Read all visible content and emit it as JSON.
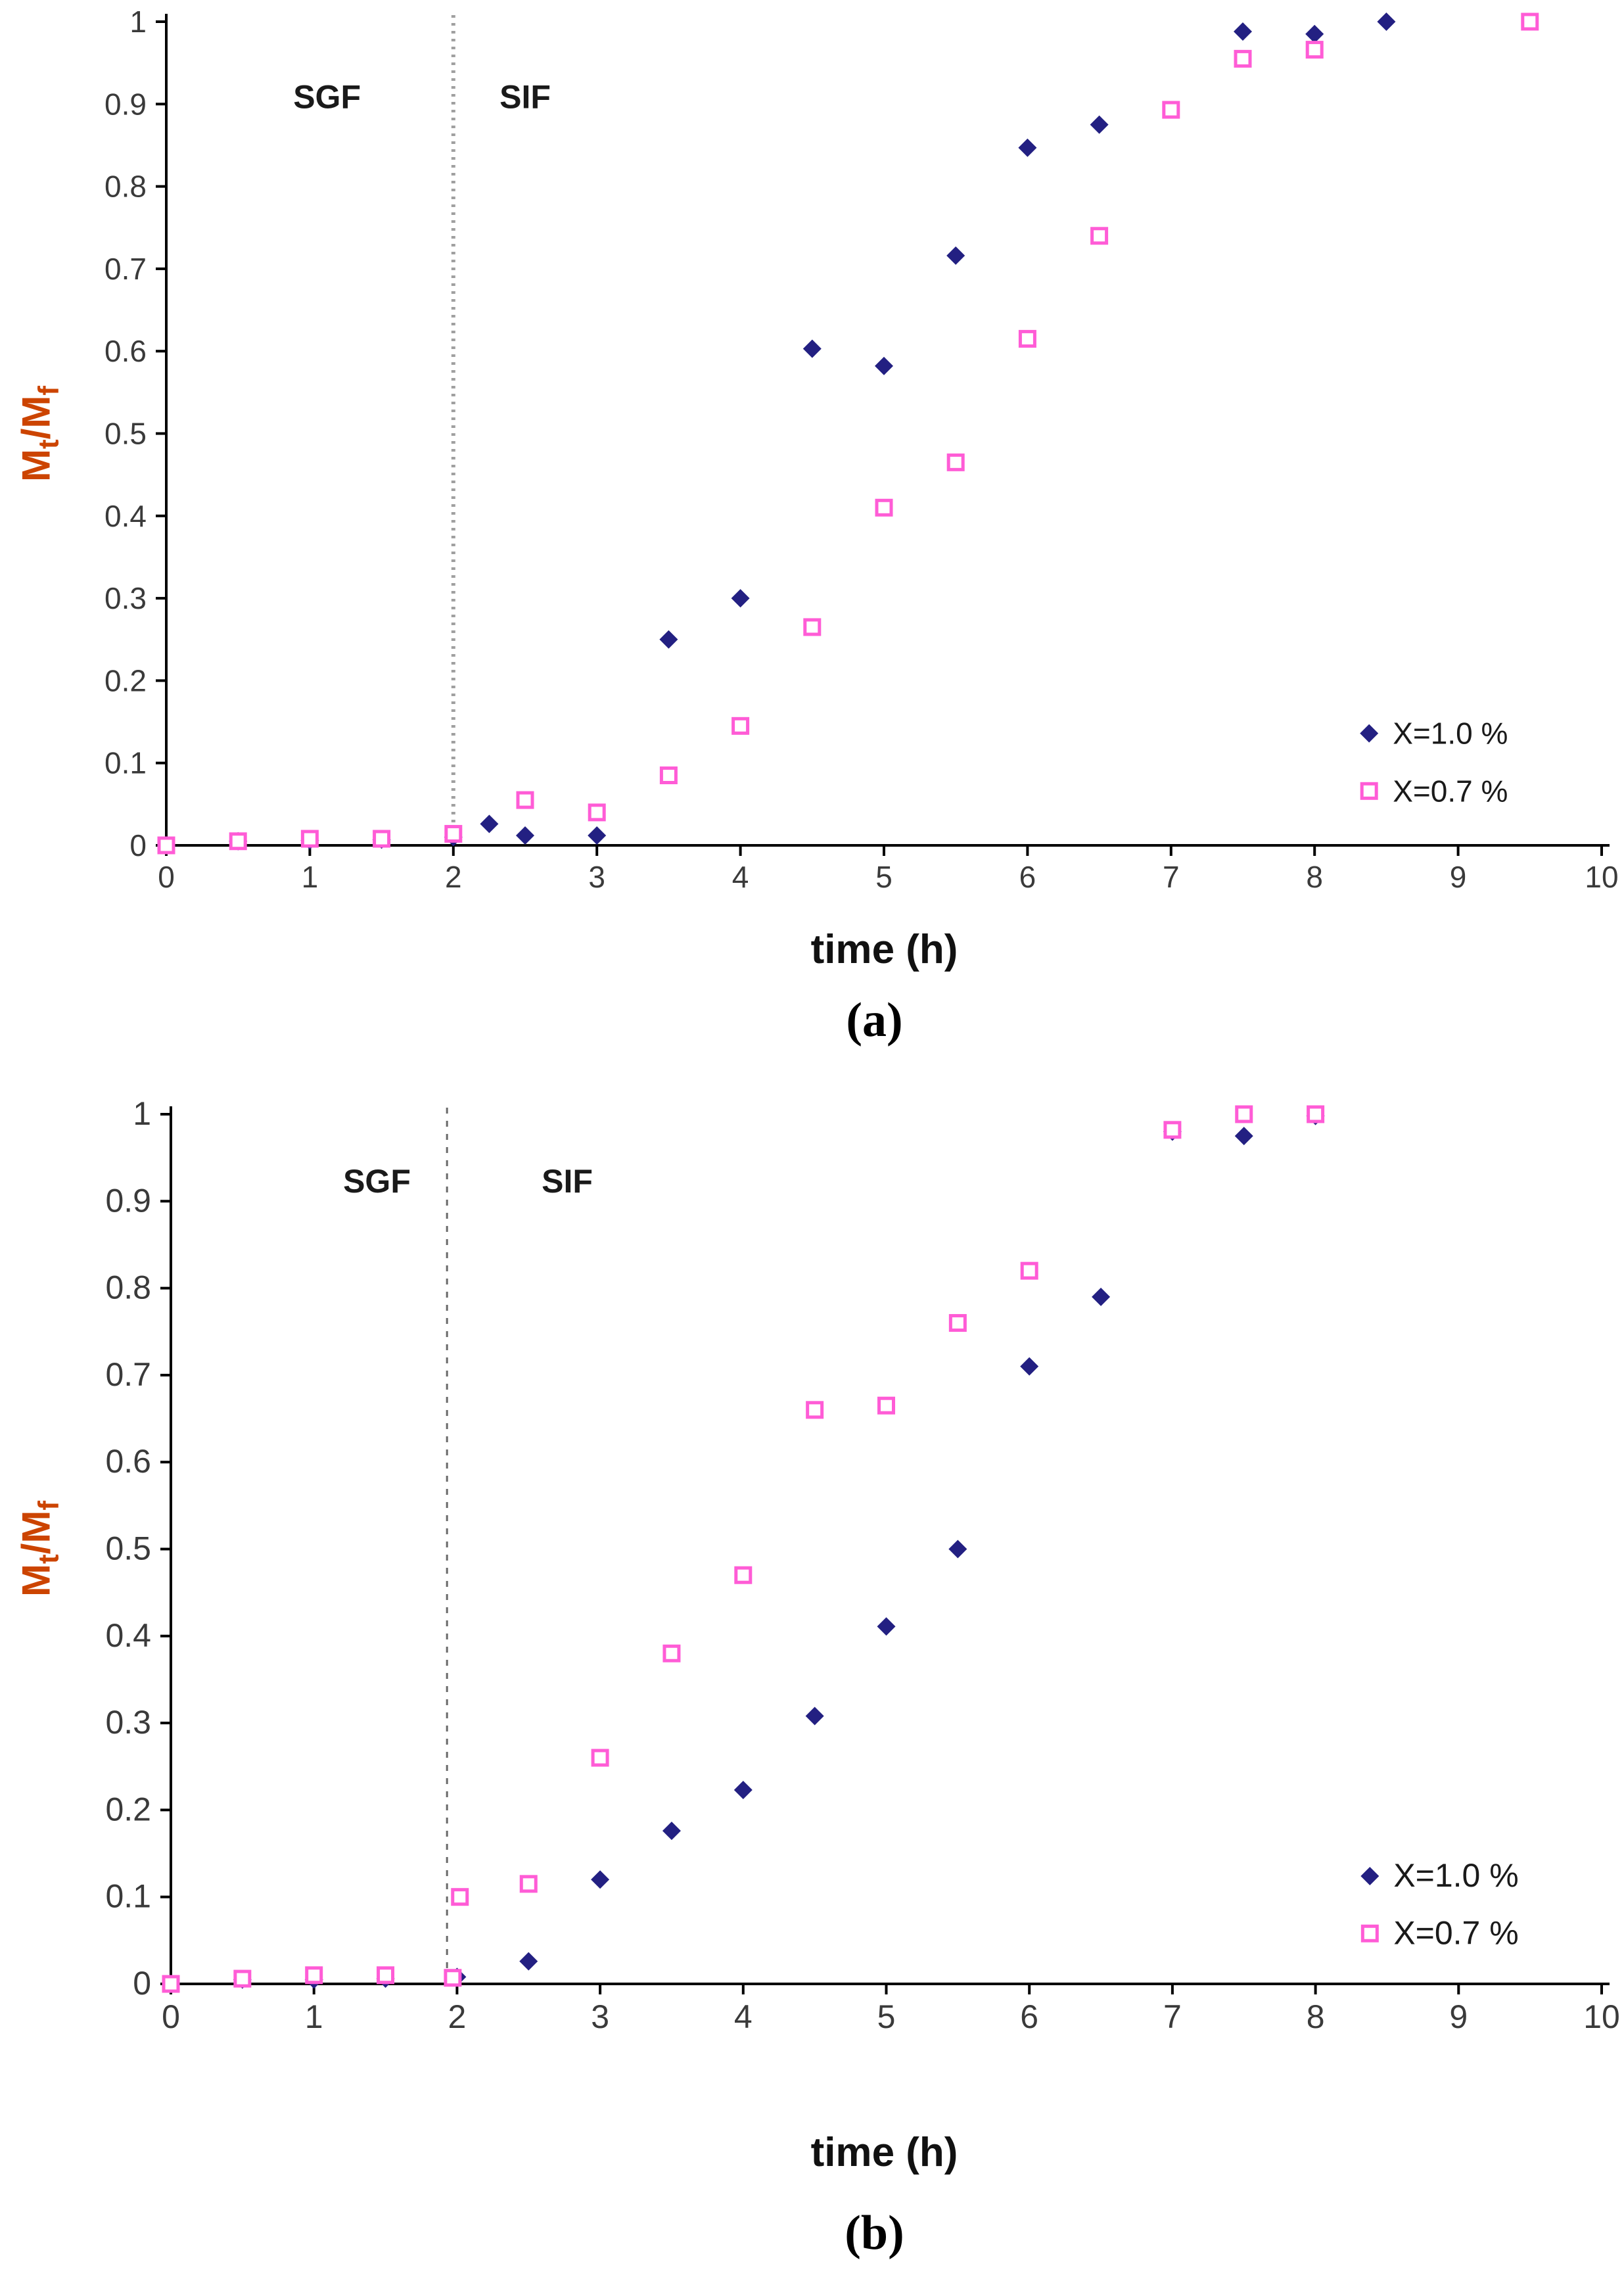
{
  "page": {
    "background": "#ffffff"
  },
  "colors": {
    "series1": "#232082",
    "series2": "#ff5cd6",
    "axis": "#000000",
    "tick_label": "#3a3a3a",
    "region_label": "#1a1a1a",
    "legend_text": "#1a1a1a",
    "ylabel": "#cc4400",
    "divider_a": "#a0a0a0",
    "divider_b": "#6a6a6a"
  },
  "chart_data": [
    {
      "type": "scatter",
      "caption": "(a)",
      "xlabel": "time (h)",
      "ylabel_parts": [
        "M",
        "t",
        "/M",
        "f"
      ],
      "xlim": [
        0,
        10
      ],
      "ylim": [
        0,
        1
      ],
      "xtick_labels": [
        "0",
        "1",
        "2",
        "3",
        "4",
        "5",
        "6",
        "7",
        "8",
        "9",
        "10"
      ],
      "ytick_labels": [
        "0",
        "0.1",
        "0.2",
        "0.3",
        "0.4",
        "0.5",
        "0.6",
        "0.7",
        "0.8",
        "0.9",
        "1"
      ],
      "grid": false,
      "divider_x": 2.0,
      "region_labels": [
        {
          "text": "SGF",
          "x": 1.12,
          "y": 0.895
        },
        {
          "text": "SIF",
          "x": 2.5,
          "y": 0.895
        }
      ],
      "legend": {
        "x": 8.38,
        "y_top": 0.136,
        "dy": 0.07,
        "entries": [
          "X=1.0 %",
          "X=0.7 %"
        ]
      },
      "series": [
        {
          "name": "X=1.0 %",
          "marker": "diamond",
          "color": "#232082",
          "points": [
            [
              0,
              0
            ],
            [
              0.5,
              0.005
            ],
            [
              1,
              0.006
            ],
            [
              1.5,
              0.007
            ],
            [
              2,
              0.01
            ],
            [
              2.25,
              0.026
            ],
            [
              2.5,
              0.012
            ],
            [
              3,
              0.012
            ],
            [
              3.5,
              0.25
            ],
            [
              4,
              0.3
            ],
            [
              4.5,
              0.603
            ],
            [
              5,
              0.582
            ],
            [
              5.5,
              0.716
            ],
            [
              6,
              0.847
            ],
            [
              6.5,
              0.875
            ],
            [
              7.5,
              0.988
            ],
            [
              8,
              0.985
            ],
            [
              8.5,
              1
            ]
          ]
        },
        {
          "name": "X=0.7 %",
          "marker": "square",
          "color": "#ff5cd6",
          "points": [
            [
              0,
              0
            ],
            [
              0.5,
              0.005
            ],
            [
              1,
              0.008
            ],
            [
              1.5,
              0.008
            ],
            [
              2,
              0.014
            ],
            [
              2.5,
              0.055
            ],
            [
              3,
              0.04
            ],
            [
              3.5,
              0.085
            ],
            [
              4,
              0.145
            ],
            [
              4.5,
              0.265
            ],
            [
              5,
              0.41
            ],
            [
              5.5,
              0.465
            ],
            [
              6,
              0.615
            ],
            [
              6.5,
              0.74
            ],
            [
              7,
              0.893
            ],
            [
              7.5,
              0.955
            ],
            [
              8,
              0.966
            ],
            [
              9.5,
              1
            ]
          ]
        }
      ]
    },
    {
      "type": "scatter",
      "caption": "(b)",
      "xlabel": "time (h)",
      "ylabel_parts": [
        "M",
        "t",
        "/M",
        "f"
      ],
      "xlim": [
        0,
        10
      ],
      "ylim": [
        0,
        1
      ],
      "xtick_labels": [
        "0",
        "1",
        "2",
        "3",
        "4",
        "5",
        "6",
        "7",
        "8",
        "9",
        "10"
      ],
      "ytick_labels": [
        "0",
        "0.1",
        "0.2",
        "0.3",
        "0.4",
        "0.5",
        "0.6",
        "0.7",
        "0.8",
        "0.9",
        "1"
      ],
      "grid": false,
      "divider_x": 1.93,
      "region_labels": [
        {
          "text": "SGF",
          "x": 1.44,
          "y": 0.91
        },
        {
          "text": "SIF",
          "x": 2.77,
          "y": 0.91
        }
      ],
      "legend": {
        "x": 8.38,
        "y_top": 0.124,
        "dy": 0.066,
        "entries": [
          "X=1.0 %",
          "X=0.7 %"
        ]
      },
      "series": [
        {
          "name": "X=1.0 %",
          "marker": "diamond",
          "color": "#232082",
          "points": [
            [
              0,
              0
            ],
            [
              0.5,
              0.005
            ],
            [
              1,
              0.005
            ],
            [
              1.5,
              0.006
            ],
            [
              2,
              0.008
            ],
            [
              2.5,
              0.026
            ],
            [
              3,
              0.12
            ],
            [
              3.5,
              0.176
            ],
            [
              4,
              0.223
            ],
            [
              4.5,
              0.308
            ],
            [
              5,
              0.411
            ],
            [
              5.5,
              0.5
            ],
            [
              6,
              0.71
            ],
            [
              6.5,
              0.79
            ],
            [
              7,
              0.98
            ],
            [
              7.5,
              0.975
            ],
            [
              8,
              0.998
            ]
          ]
        },
        {
          "name": "X=0.7 %",
          "marker": "square",
          "color": "#ff5cd6",
          "points": [
            [
              0,
              0
            ],
            [
              0.5,
              0.006
            ],
            [
              1,
              0.01
            ],
            [
              1.5,
              0.01
            ],
            [
              1.97,
              0.007
            ],
            [
              2.02,
              0.1
            ],
            [
              2.5,
              0.115
            ],
            [
              3,
              0.26
            ],
            [
              3.5,
              0.38
            ],
            [
              4,
              0.47
            ],
            [
              4.5,
              0.66
            ],
            [
              5,
              0.665
            ],
            [
              5.5,
              0.76
            ],
            [
              6,
              0.82
            ],
            [
              7,
              0.982
            ],
            [
              7.5,
              1
            ],
            [
              8,
              1
            ]
          ]
        }
      ]
    }
  ]
}
